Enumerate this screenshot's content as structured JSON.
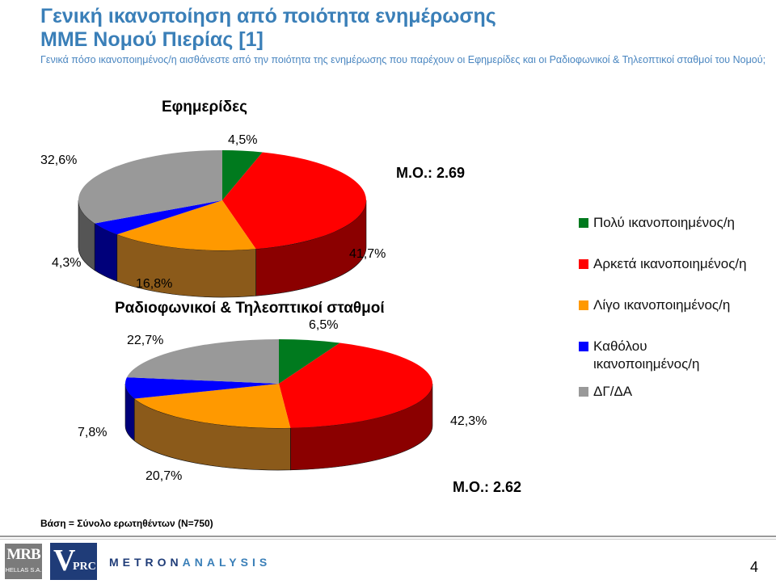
{
  "header": {
    "title_line1": "Γενική ικανοποίηση από ποιότητα ενημέρωσης",
    "title_line2": "ΜΜΕ Νομού Πιερίας [1]",
    "subtitle": "Γενικά πόσο ικανοποιημένος/η αισθάνεστε από την ποιότητα της ενημέρωσης που παρέχουν οι Εφημερίδες και οι Ραδιοφωνικοί & Τηλεοπτικοί σταθμοί του Νομού;"
  },
  "legend": {
    "items": [
      {
        "label": "Πολύ ικανοποιημένος/η",
        "color": "#007a1e"
      },
      {
        "label": "Αρκετά ικανοποιημένος/η",
        "color": "#ff0000"
      },
      {
        "label": "Λίγο ικανοποιημένος/η",
        "color": "#ff9900"
      },
      {
        "label": "Καθόλου ικανοποιημένος/η",
        "color": "#0000ff"
      },
      {
        "label": "ΔΓ/ΔΑ",
        "color": "#999999"
      }
    ]
  },
  "chart_data": [
    {
      "type": "pie",
      "title": "Εφημερίδες",
      "categories": [
        "Πολύ ικανοποιημένος/η",
        "Αρκετά ικανοποιημένος/η",
        "Λίγο ικανοποιημένος/η",
        "Καθόλου ικανοποιημένος/η",
        "ΔΓ/ΔΑ"
      ],
      "values": [
        4.5,
        41.7,
        16.8,
        4.3,
        32.6
      ],
      "labels": [
        "4,5%",
        "41,7%",
        "16,8%",
        "4,3%",
        "32,6%"
      ],
      "mean_label": "Μ.Ο.: 2.69"
    },
    {
      "type": "pie",
      "title": "Ραδιοφωνικοί & Τηλεοπτικοί σταθμοί",
      "categories": [
        "Πολύ ικανοποιημένος/η",
        "Αρκετά ικανοποιημένος/η",
        "Λίγο ικανοποιημένος/η",
        "Καθόλου ικανοποιημένος/η",
        "ΔΓ/ΔΑ"
      ],
      "values": [
        6.5,
        42.3,
        20.7,
        7.8,
        22.7
      ],
      "labels": [
        "6,5%",
        "42,3%",
        "20,7%",
        "7,8%",
        "22,7%"
      ],
      "mean_label": "Μ.Ο.: 2.62"
    }
  ],
  "footer": {
    "base_note": "Βάση = Σύνολο ερωτηθέντων (N=750)",
    "page_number": "4",
    "logo_mrb_big": "MRB",
    "logo_mrb_small": "HELLAS S.A.",
    "logo_vprc_v": "V",
    "logo_vprc_rest": "PRC",
    "logo_metron_a": "METRON",
    "logo_metron_b": "ANALYSIS"
  }
}
